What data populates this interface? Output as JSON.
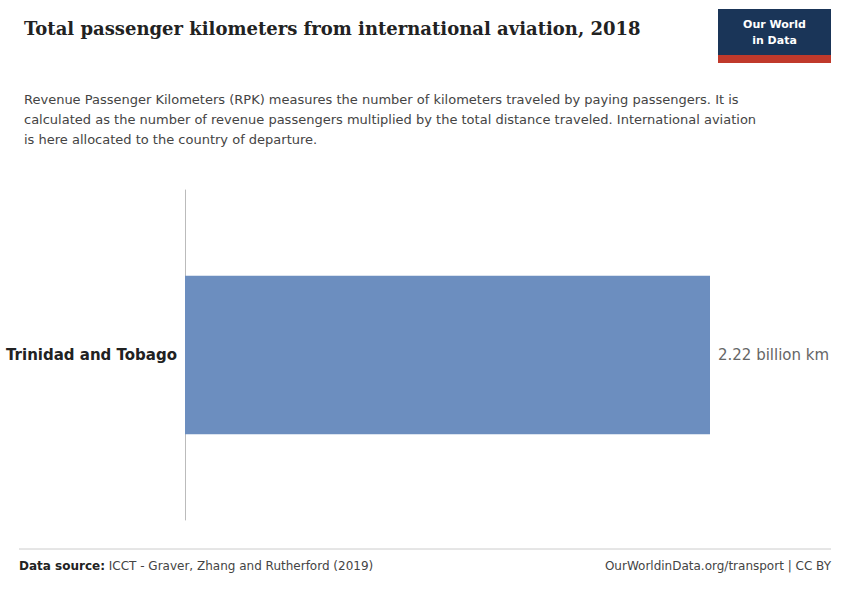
{
  "chart_data": {
    "type": "bar",
    "orientation": "horizontal",
    "title": "Total passenger kilometers from international aviation, 2018",
    "subtitle": "Revenue Passenger Kilometers (RPK) measures the number of kilometers traveled by paying passengers. It is\ncalculated as the number of revenue passengers multiplied by the total distance traveled. International aviation\nis here allocated to the country of departure.",
    "categories": [
      "Trinidad and Tobago"
    ],
    "values": [
      2.22
    ],
    "value_labels": [
      "2.22 billion km"
    ],
    "data_labels": true,
    "color": "#6c8ebf",
    "xlim": [
      0,
      2.22
    ],
    "tick_labels": "y",
    "grid": false,
    "source_label": "Data source:",
    "source": "ICCT - Graver, Zhang and Rutherford (2019)",
    "credit": "OurWorldinData.org/transport | CC BY",
    "logo": [
      "Our World",
      "in Data"
    ]
  }
}
